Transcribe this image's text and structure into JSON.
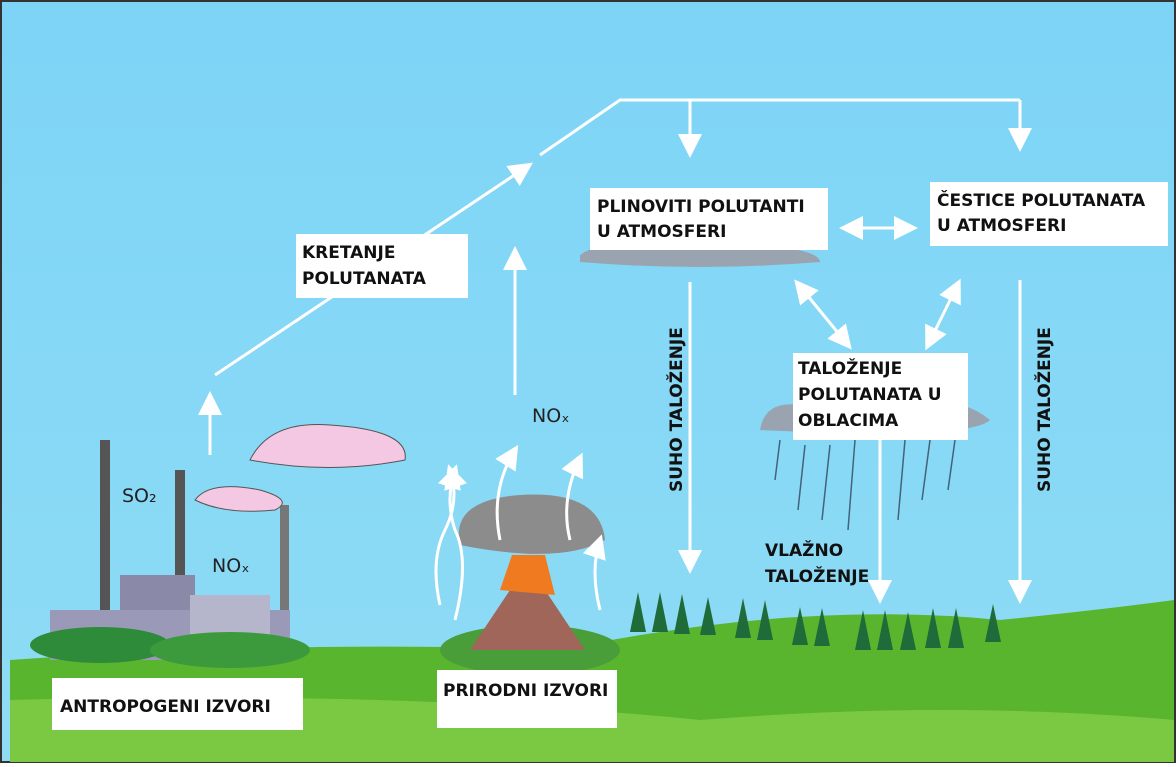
{
  "labels": {
    "movement": [
      "KRETANJE",
      "POLUTANATA"
    ],
    "gaseous": [
      "PLINOVITI POLUTANTI",
      "U ATMOSFERI"
    ],
    "particles": [
      "ČESTICE POLUTANATA",
      "U ATMOSFERI"
    ],
    "cloud_deposition": [
      "TALOŽENJE",
      "POLUTANATA U",
      "OBLACIMA"
    ],
    "dry_left": "SUHO TALOŽENJE",
    "dry_right": "SUHO TALOŽENJE",
    "wet": [
      "VLAŽNO",
      "TALOŽENJE"
    ],
    "nox_volcano": "NOₓ",
    "so2_factory": "SO₂",
    "nox_factory": "NOₓ",
    "anthropogenic": "ANTROPOGENI IZVORI",
    "natural": "PRIRODNI IZVORI"
  }
}
